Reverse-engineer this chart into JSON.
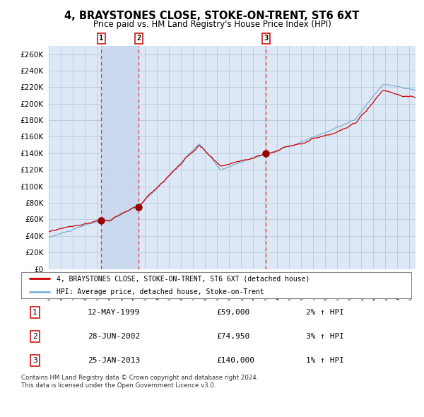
{
  "title": "4, BRAYSTONES CLOSE, STOKE-ON-TRENT, ST6 6XT",
  "subtitle": "Price paid vs. HM Land Registry's House Price Index (HPI)",
  "legend_line1": "4, BRAYSTONES CLOSE, STOKE-ON-TRENT, ST6 6XT (detached house)",
  "legend_line2": "HPI: Average price, detached house, Stoke-on-Trent",
  "transactions": [
    {
      "num": 1,
      "date": "12-MAY-1999",
      "price": 59000,
      "hpi_pct": "2% ↑ HPI",
      "year": 1999.37
    },
    {
      "num": 2,
      "date": "28-JUN-2002",
      "price": 74950,
      "hpi_pct": "3% ↑ HPI",
      "year": 2002.49
    },
    {
      "num": 3,
      "date": "25-JAN-2013",
      "price": 140000,
      "hpi_pct": "1% ↑ HPI",
      "year": 2013.07
    }
  ],
  "hpi_color": "#7bafd4",
  "price_color": "#cc0000",
  "dot_color": "#990000",
  "vline_color": "#ee3333",
  "shade_color": "#c8d8ee",
  "background_color": "#dce8f5",
  "grid_color": "#b0c4d8",
  "ylim": [
    0,
    270000
  ],
  "yticks": [
    0,
    20000,
    40000,
    60000,
    80000,
    100000,
    120000,
    140000,
    160000,
    180000,
    200000,
    220000,
    240000,
    260000
  ],
  "xlim_start": 1995,
  "xlim_end": 2025.5,
  "footer": "Contains HM Land Registry data © Crown copyright and database right 2024.\nThis data is licensed under the Open Government Licence v3.0."
}
